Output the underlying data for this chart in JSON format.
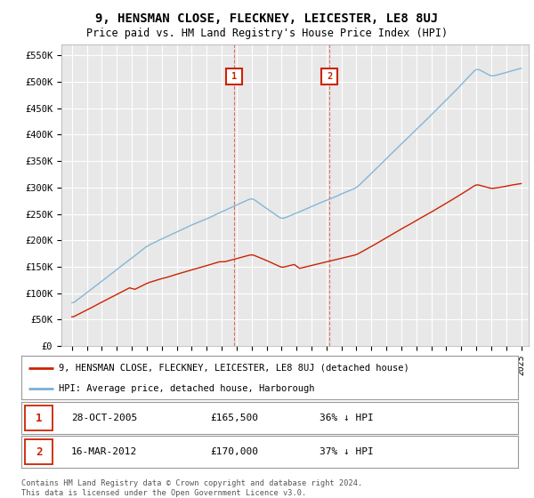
{
  "title": "9, HENSMAN CLOSE, FLECKNEY, LEICESTER, LE8 8UJ",
  "subtitle": "Price paid vs. HM Land Registry's House Price Index (HPI)",
  "background_color": "#ffffff",
  "plot_bg_color": "#e8e8e8",
  "grid_color": "#ffffff",
  "hpi_color": "#7ab0d4",
  "price_color": "#cc2200",
  "marker1_date": 2005.83,
  "marker1_price": 165500,
  "marker2_date": 2012.21,
  "marker2_price": 170000,
  "legend_line1": "9, HENSMAN CLOSE, FLECKNEY, LEICESTER, LE8 8UJ (detached house)",
  "legend_line2": "HPI: Average price, detached house, Harborough",
  "footnote": "Contains HM Land Registry data © Crown copyright and database right 2024.\nThis data is licensed under the Open Government Licence v3.0.",
  "ylim": [
    0,
    570000
  ],
  "yticks": [
    0,
    50000,
    100000,
    150000,
    200000,
    250000,
    300000,
    350000,
    400000,
    450000,
    500000,
    550000
  ],
  "ytick_labels": [
    "£0",
    "£50K",
    "£100K",
    "£150K",
    "£200K",
    "£250K",
    "£300K",
    "£350K",
    "£400K",
    "£450K",
    "£500K",
    "£550K"
  ],
  "xlim_start": 1994.3,
  "xlim_end": 2025.5
}
